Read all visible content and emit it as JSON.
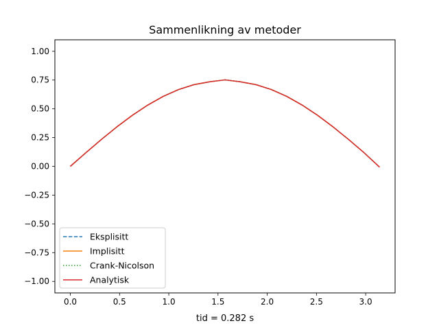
{
  "chart_data": {
    "type": "line",
    "title": "Sammenlikning av metoder",
    "xlabel": "tid = 0.282 s",
    "ylabel": "",
    "xlim": [
      -0.157,
      3.299
    ],
    "ylim": [
      -1.1,
      1.1
    ],
    "x_ticks": [
      0.0,
      0.5,
      1.0,
      1.5,
      2.0,
      2.5,
      3.0
    ],
    "x_tick_labels": [
      "0.0",
      "0.5",
      "1.0",
      "1.5",
      "2.0",
      "2.5",
      "3.0"
    ],
    "y_ticks": [
      -1.0,
      -0.75,
      -0.5,
      -0.25,
      0.0,
      0.25,
      0.5,
      0.75,
      1.0
    ],
    "y_tick_labels": [
      "−1.00",
      "−0.75",
      "−0.50",
      "−0.25",
      "0.00",
      "0.25",
      "0.50",
      "0.75",
      "1.00"
    ],
    "grid": false,
    "legend_position": "lower-left",
    "x": [
      0.0,
      0.1571,
      0.3142,
      0.4712,
      0.6283,
      0.7854,
      0.9425,
      1.0996,
      1.2566,
      1.4137,
      1.5708,
      1.7279,
      1.885,
      2.042,
      2.1991,
      2.3562,
      2.5133,
      2.6704,
      2.8274,
      2.9845,
      3.1416
    ],
    "series": [
      {
        "name": "Eksplisitt",
        "color": "#1f77b4",
        "style": "dashed",
        "values": [
          0.0,
          0.1178,
          0.2327,
          0.3419,
          0.4425,
          0.5318,
          0.6076,
          0.6676,
          0.7103,
          0.7346,
          0.7516,
          0.7346,
          0.7103,
          0.6676,
          0.6076,
          0.5318,
          0.4425,
          0.3419,
          0.2327,
          0.1178,
          -0.0071
        ]
      },
      {
        "name": "Implisitt",
        "color": "#ff7f0e",
        "style": "solid",
        "values": [
          0.0,
          0.1178,
          0.2327,
          0.3419,
          0.4425,
          0.5318,
          0.6076,
          0.6676,
          0.7103,
          0.7346,
          0.7516,
          0.7346,
          0.7103,
          0.6676,
          0.6076,
          0.5318,
          0.4425,
          0.3419,
          0.2327,
          0.1178,
          -0.0071
        ]
      },
      {
        "name": "Crank-Nicolson",
        "color": "#2ca02c",
        "style": "dotted",
        "values": [
          0.0,
          0.1178,
          0.2327,
          0.3419,
          0.4425,
          0.5318,
          0.6076,
          0.6676,
          0.7103,
          0.7346,
          0.7516,
          0.7346,
          0.7103,
          0.6676,
          0.6076,
          0.5318,
          0.4425,
          0.3419,
          0.2327,
          0.1178,
          -0.0071
        ]
      },
      {
        "name": "Analytisk",
        "color": "#d62728",
        "style": "solid",
        "values": [
          0.0,
          0.1178,
          0.2327,
          0.3419,
          0.4425,
          0.5318,
          0.6076,
          0.6676,
          0.7103,
          0.7346,
          0.7516,
          0.7346,
          0.7103,
          0.6676,
          0.6076,
          0.5318,
          0.4425,
          0.3419,
          0.2327,
          0.1178,
          -0.0071
        ]
      }
    ]
  }
}
